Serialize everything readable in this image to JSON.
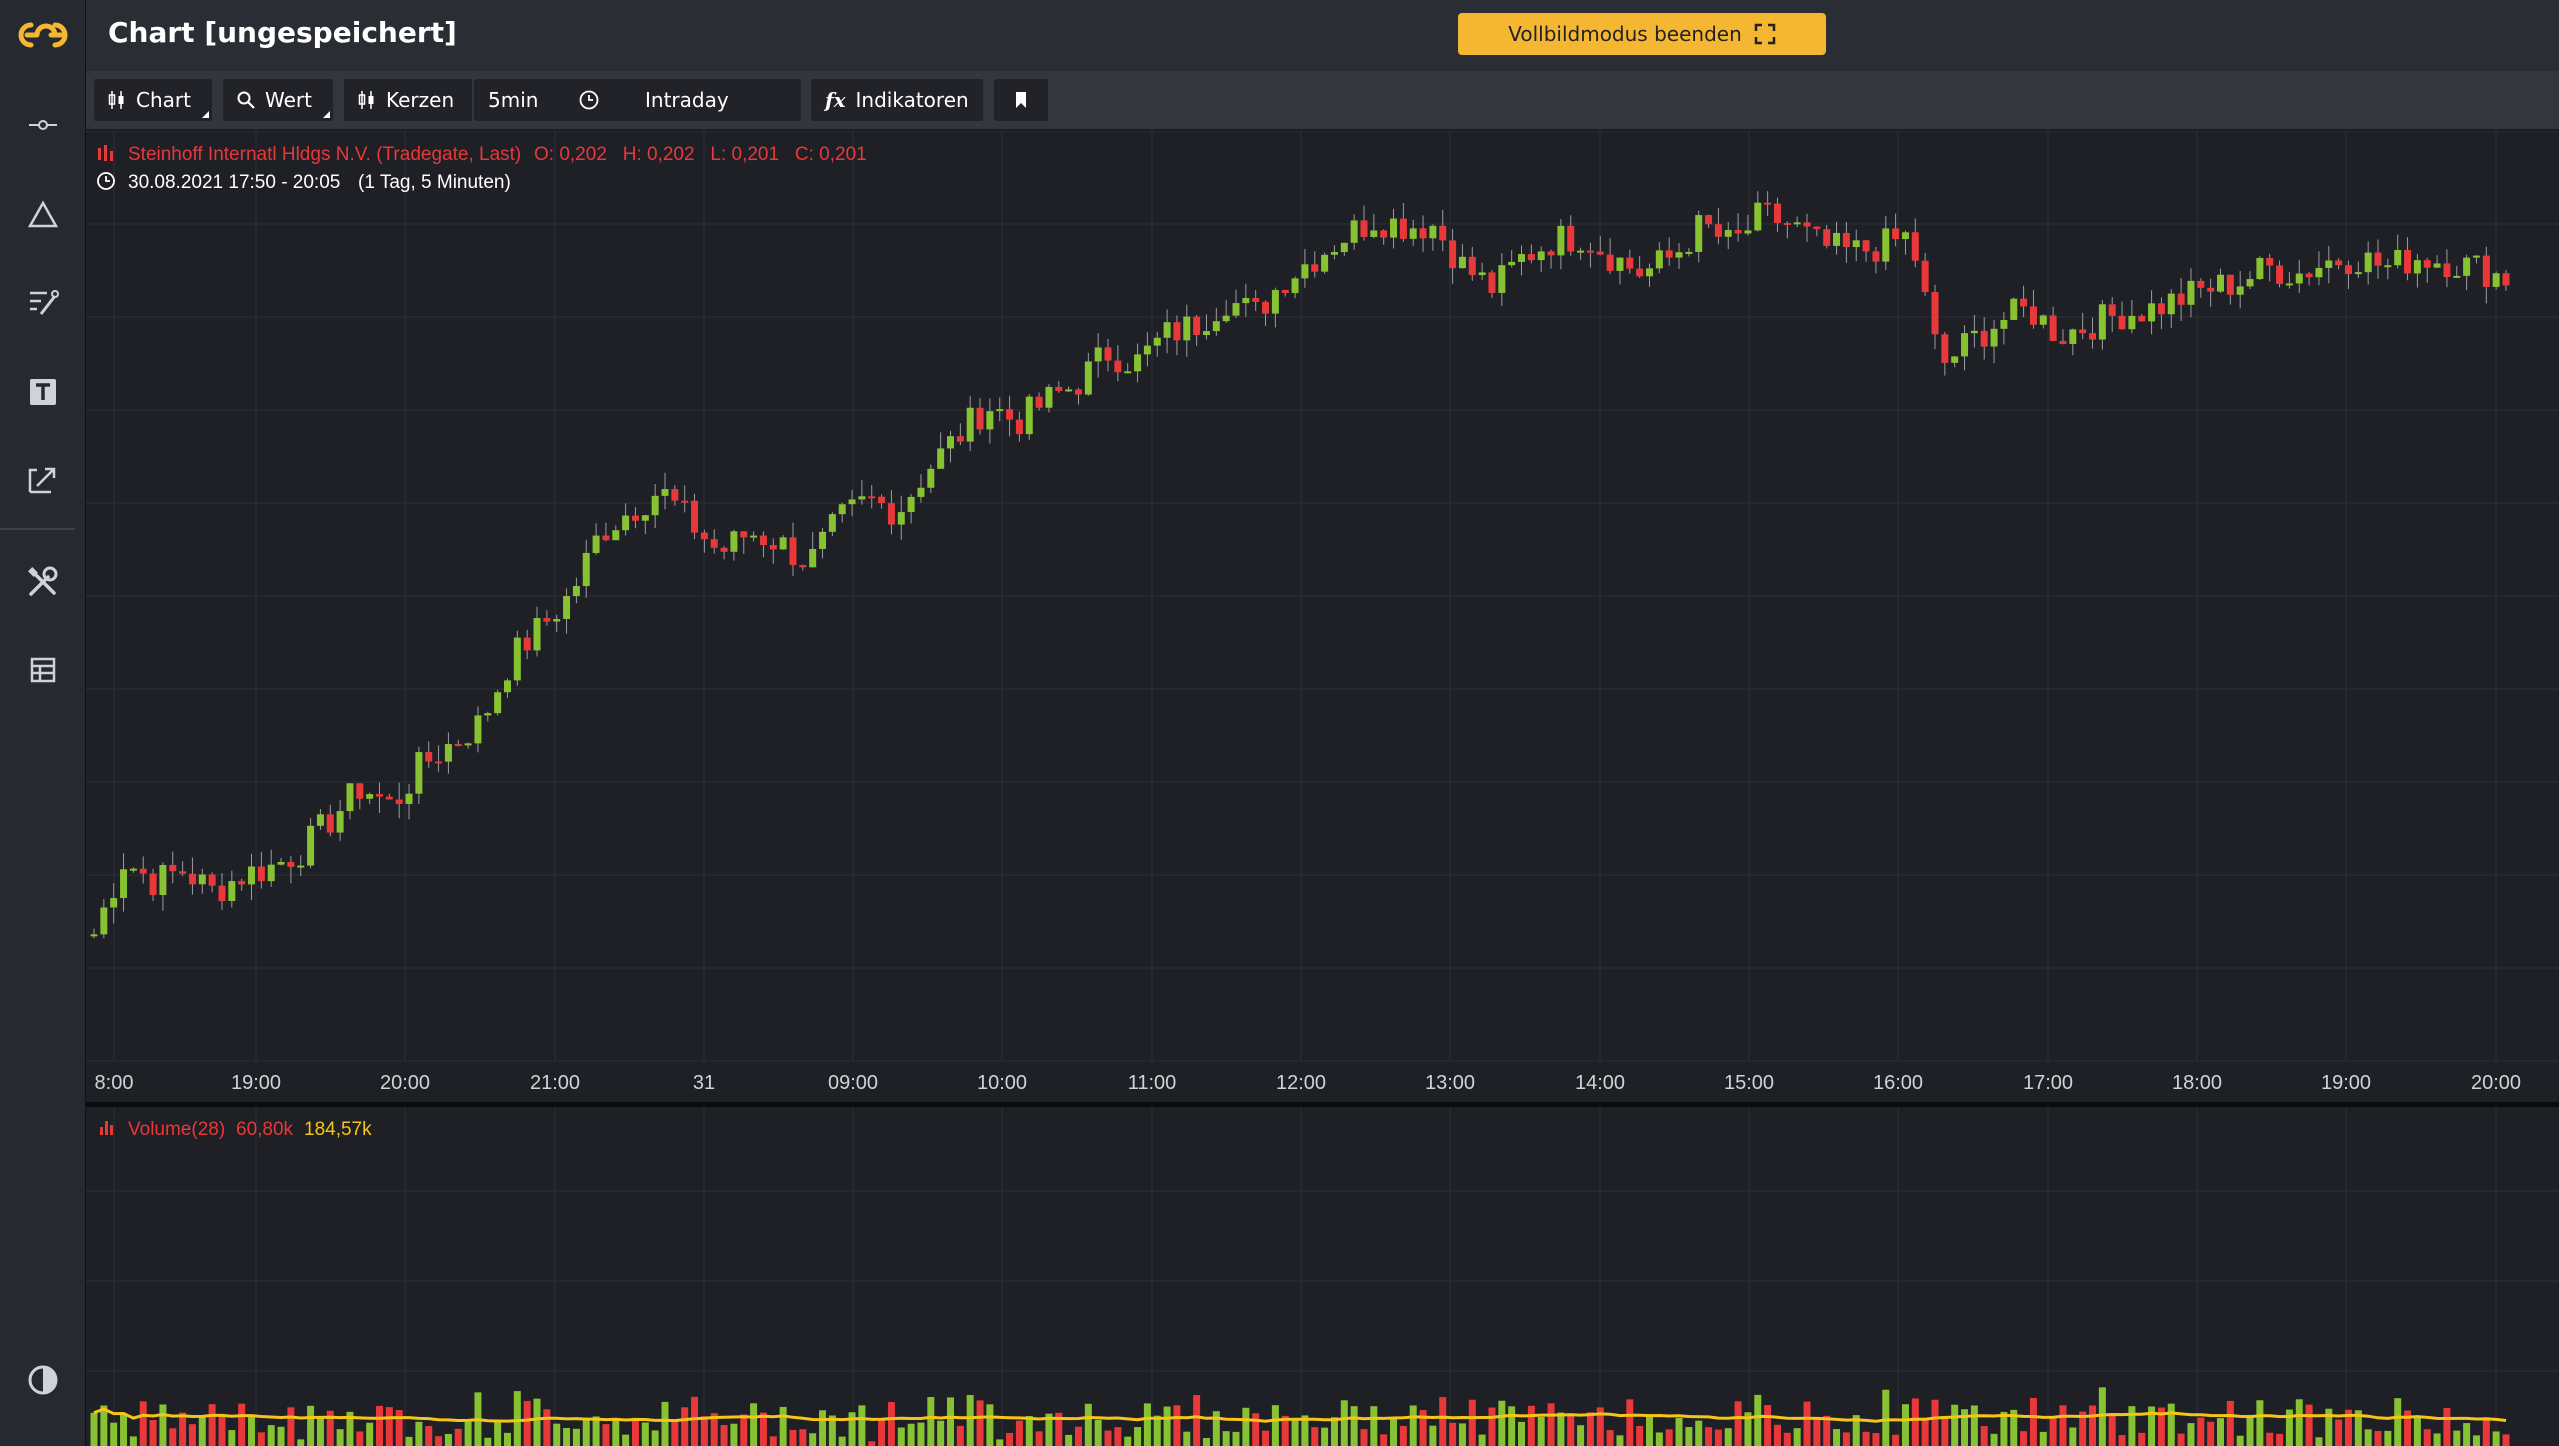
{
  "app": {
    "title": "Chart [ungespeichert]",
    "fullscreen_label": "Vollbildmodus beenden"
  },
  "toolbar": {
    "chart_label": "Chart",
    "value_label": "Wert",
    "candles_label": "Kerzen",
    "interval_label": "5min",
    "range_label": "Intraday",
    "indicators_label": "Indikatoren"
  },
  "sidebar": {
    "icons": [
      "crosshair-line-icon",
      "triangle-icon",
      "drawing-tools-icon",
      "text-icon",
      "annotation-arrow-icon",
      "tools-icon",
      "layout-icon",
      "contrast-icon"
    ]
  },
  "legend": {
    "instrument": "Steinhoff Internatl Hldgs N.V. (Tradegate, Last)",
    "ohlc": "O: 0,202   H: 0,202   L: 0,201   C: 0,201",
    "period": "30.08.2021 17:50 - 20:05",
    "resolution": "(1 Tag, 5 Minuten)",
    "volume_label": "Volume(28)",
    "volume_value": "60,80k",
    "volume_avg": "184,57k"
  },
  "colors": {
    "up": "#86c232",
    "down": "#e8383a",
    "ma": "#f5c518",
    "accent": "#f5b731"
  },
  "chart_data": {
    "type": "candlestick",
    "x_tick_labels": [
      "8:00",
      "19:00",
      "20:00",
      "21:00",
      "31",
      "09:00",
      "10:00",
      "11:00",
      "12:00",
      "13:00",
      "14:00",
      "15:00",
      "16:00",
      "17:00",
      "18:00",
      "19:00",
      "20:00"
    ],
    "closes": [
      0.161,
      0.1645,
      0.1635,
      0.164,
      0.163,
      0.1638,
      0.1642,
      0.165,
      0.1665,
      0.168,
      0.167,
      0.169,
      0.17,
      0.171,
      0.174,
      0.1755,
      0.177,
      0.18,
      0.181,
      0.182,
      0.1805,
      0.179,
      0.18,
      0.1795,
      0.1785,
      0.1805,
      0.1815,
      0.181,
      0.183,
      0.1845,
      0.186,
      0.1852,
      0.1862,
      0.187,
      0.1885,
      0.188,
      0.1893,
      0.1898,
      0.191,
      0.1903,
      0.192,
      0.193,
      0.194,
      0.1948,
      0.1945,
      0.1945,
      0.1925,
      0.1915,
      0.193,
      0.1938,
      0.194,
      0.193,
      0.1922,
      0.193,
      0.1945,
      0.1935,
      0.195,
      0.1945,
      0.1935,
      0.1932,
      0.1935,
      0.194,
      0.1878,
      0.189,
      0.19,
      0.1905,
      0.1893,
      0.1898,
      0.1903,
      0.1905,
      0.191,
      0.1915,
      0.1918,
      0.1925,
      0.1922,
      0.1928,
      0.193,
      0.1925,
      0.193,
      0.1928,
      0.1925,
      0.192
    ],
    "volume_ma_label": "184,57k"
  }
}
